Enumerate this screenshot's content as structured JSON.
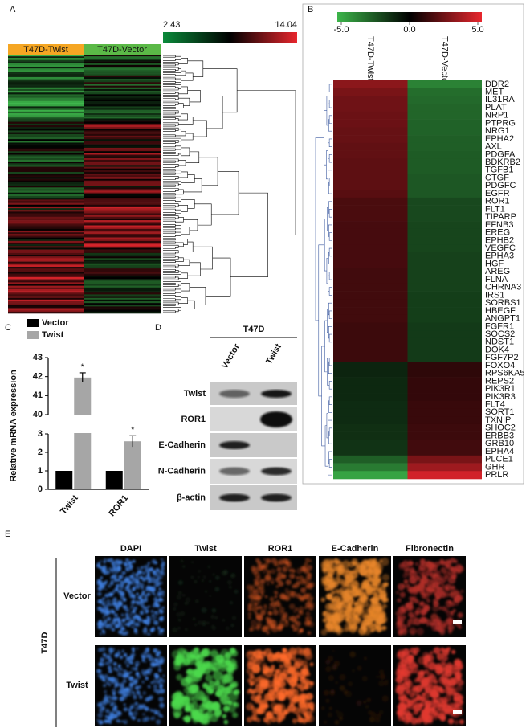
{
  "panels": {
    "a": "A",
    "b": "B",
    "c": "C",
    "d": "D",
    "e": "E"
  },
  "heatmap_a": {
    "scale_min": 2.43,
    "scale_max": 14.04,
    "columns": [
      "T47D-Twist",
      "T47D-Vector"
    ]
  },
  "chart_data": [
    {
      "type": "heatmap",
      "categories": [
        "DDR2",
        "MET",
        "IL31RA",
        "PLAT",
        "NRP1",
        "PTPRG",
        "NRG1",
        "EPHA2",
        "AXL",
        "PDGFA",
        "BDKRB2",
        "TGFB1",
        "CTGF",
        "PDGFC",
        "EGFR",
        "ROR1",
        "FLT1",
        "TIPARP",
        "EFNB3",
        "EREG",
        "EPHB2",
        "VEGFC",
        "EPHA3",
        "HGF",
        "AREG",
        "FLNA",
        "CHRNA3",
        "IRS1",
        "SORBS1",
        "HBEGF",
        "ANGPT1",
        "FGFR1",
        "SOCS2",
        "NDST1",
        "DOK4",
        "FGF7P2",
        "FOXO4",
        "RPS6KA5",
        "REPS2",
        "PIK3R1",
        "PIK3R3",
        "FLT4",
        "SORT1",
        "TXNIP",
        "SHOC2",
        "ERBB3",
        "GRB10",
        "EPHA4",
        "PLCE1",
        "GHR",
        "PRLR"
      ],
      "series": [
        {
          "name": "T47D-Twist",
          "values": [
            3,
            2.6,
            2.4,
            2.4,
            2.3,
            2.3,
            2.2,
            2.2,
            2.1,
            2.1,
            2,
            2,
            2,
            2,
            1.9,
            1.6,
            1.6,
            1.6,
            1.5,
            1.5,
            1.5,
            1.5,
            1.5,
            1.5,
            1.4,
            1.4,
            1.4,
            1.4,
            1.4,
            1.4,
            1.4,
            1.3,
            1.3,
            1.3,
            1.3,
            1.3,
            -1,
            -1,
            -1.1,
            -1.1,
            -1.1,
            -1.2,
            -1.2,
            -1.2,
            -1.3,
            -1.3,
            -1.4,
            -1.4,
            -2.6,
            -3.4,
            -4.5
          ]
        },
        {
          "name": "T47D-Vector",
          "values": [
            -3.6,
            -3,
            -2.9,
            -2.8,
            -2.8,
            -2.7,
            -2.7,
            -2.6,
            -2.6,
            -2.5,
            -2.5,
            -2.5,
            -2.4,
            -2.4,
            -2.4,
            -2,
            -2,
            -2,
            -1.9,
            -1.9,
            -1.9,
            -1.9,
            -1.8,
            -1.8,
            -1.8,
            -1.8,
            -1.8,
            -1.7,
            -1.7,
            -1.7,
            -1.7,
            -1.6,
            -1.6,
            -1.6,
            -1.6,
            -1.6,
            1,
            1,
            1.1,
            1.1,
            1.1,
            1.2,
            1.2,
            1.2,
            1.3,
            1.3,
            1.4,
            1.4,
            2.6,
            3.4,
            4.5
          ]
        }
      ],
      "colorscale": {
        "lim": [
          -5,
          5
        ],
        "colors": [
          "#3cb54a",
          "#000000",
          "#e8262d"
        ],
        "ticks": [
          {
            "value": -5,
            "label": "-5.0"
          },
          {
            "value": 0,
            "label": "0.0"
          },
          {
            "value": 5,
            "label": "5.0"
          }
        ]
      }
    },
    {
      "type": "bar",
      "ylabel": "Relative mRNA expression",
      "categories": [
        "Twist",
        "ROR1"
      ],
      "series": [
        {
          "name": "Vector",
          "color": "#000000",
          "values": [
            1,
            1
          ]
        },
        {
          "name": "Twist",
          "color": "#a6a6a6",
          "values": [
            41.95,
            2.6
          ],
          "errors": [
            0.25,
            0.3
          ]
        }
      ],
      "annotations": [
        "*",
        "*"
      ],
      "ylim": [
        0,
        43
      ],
      "axis_break": [
        3,
        40
      ],
      "yticks": [
        0,
        1,
        2,
        3,
        40,
        41,
        42,
        43
      ]
    }
  ],
  "blot": {
    "cell_line": "T47D",
    "lanes": [
      "Vector",
      "Twist"
    ],
    "proteins": [
      "Twist",
      "ROR1",
      "E-Cadherin",
      "N-Cadherin",
      "β-actin"
    ]
  },
  "images": {
    "cell_line": "T47D",
    "channels": [
      "DAPI",
      "Twist",
      "ROR1",
      "E-Cadherin",
      "Fibronectin"
    ],
    "rows": [
      "Vector",
      "Twist"
    ]
  }
}
